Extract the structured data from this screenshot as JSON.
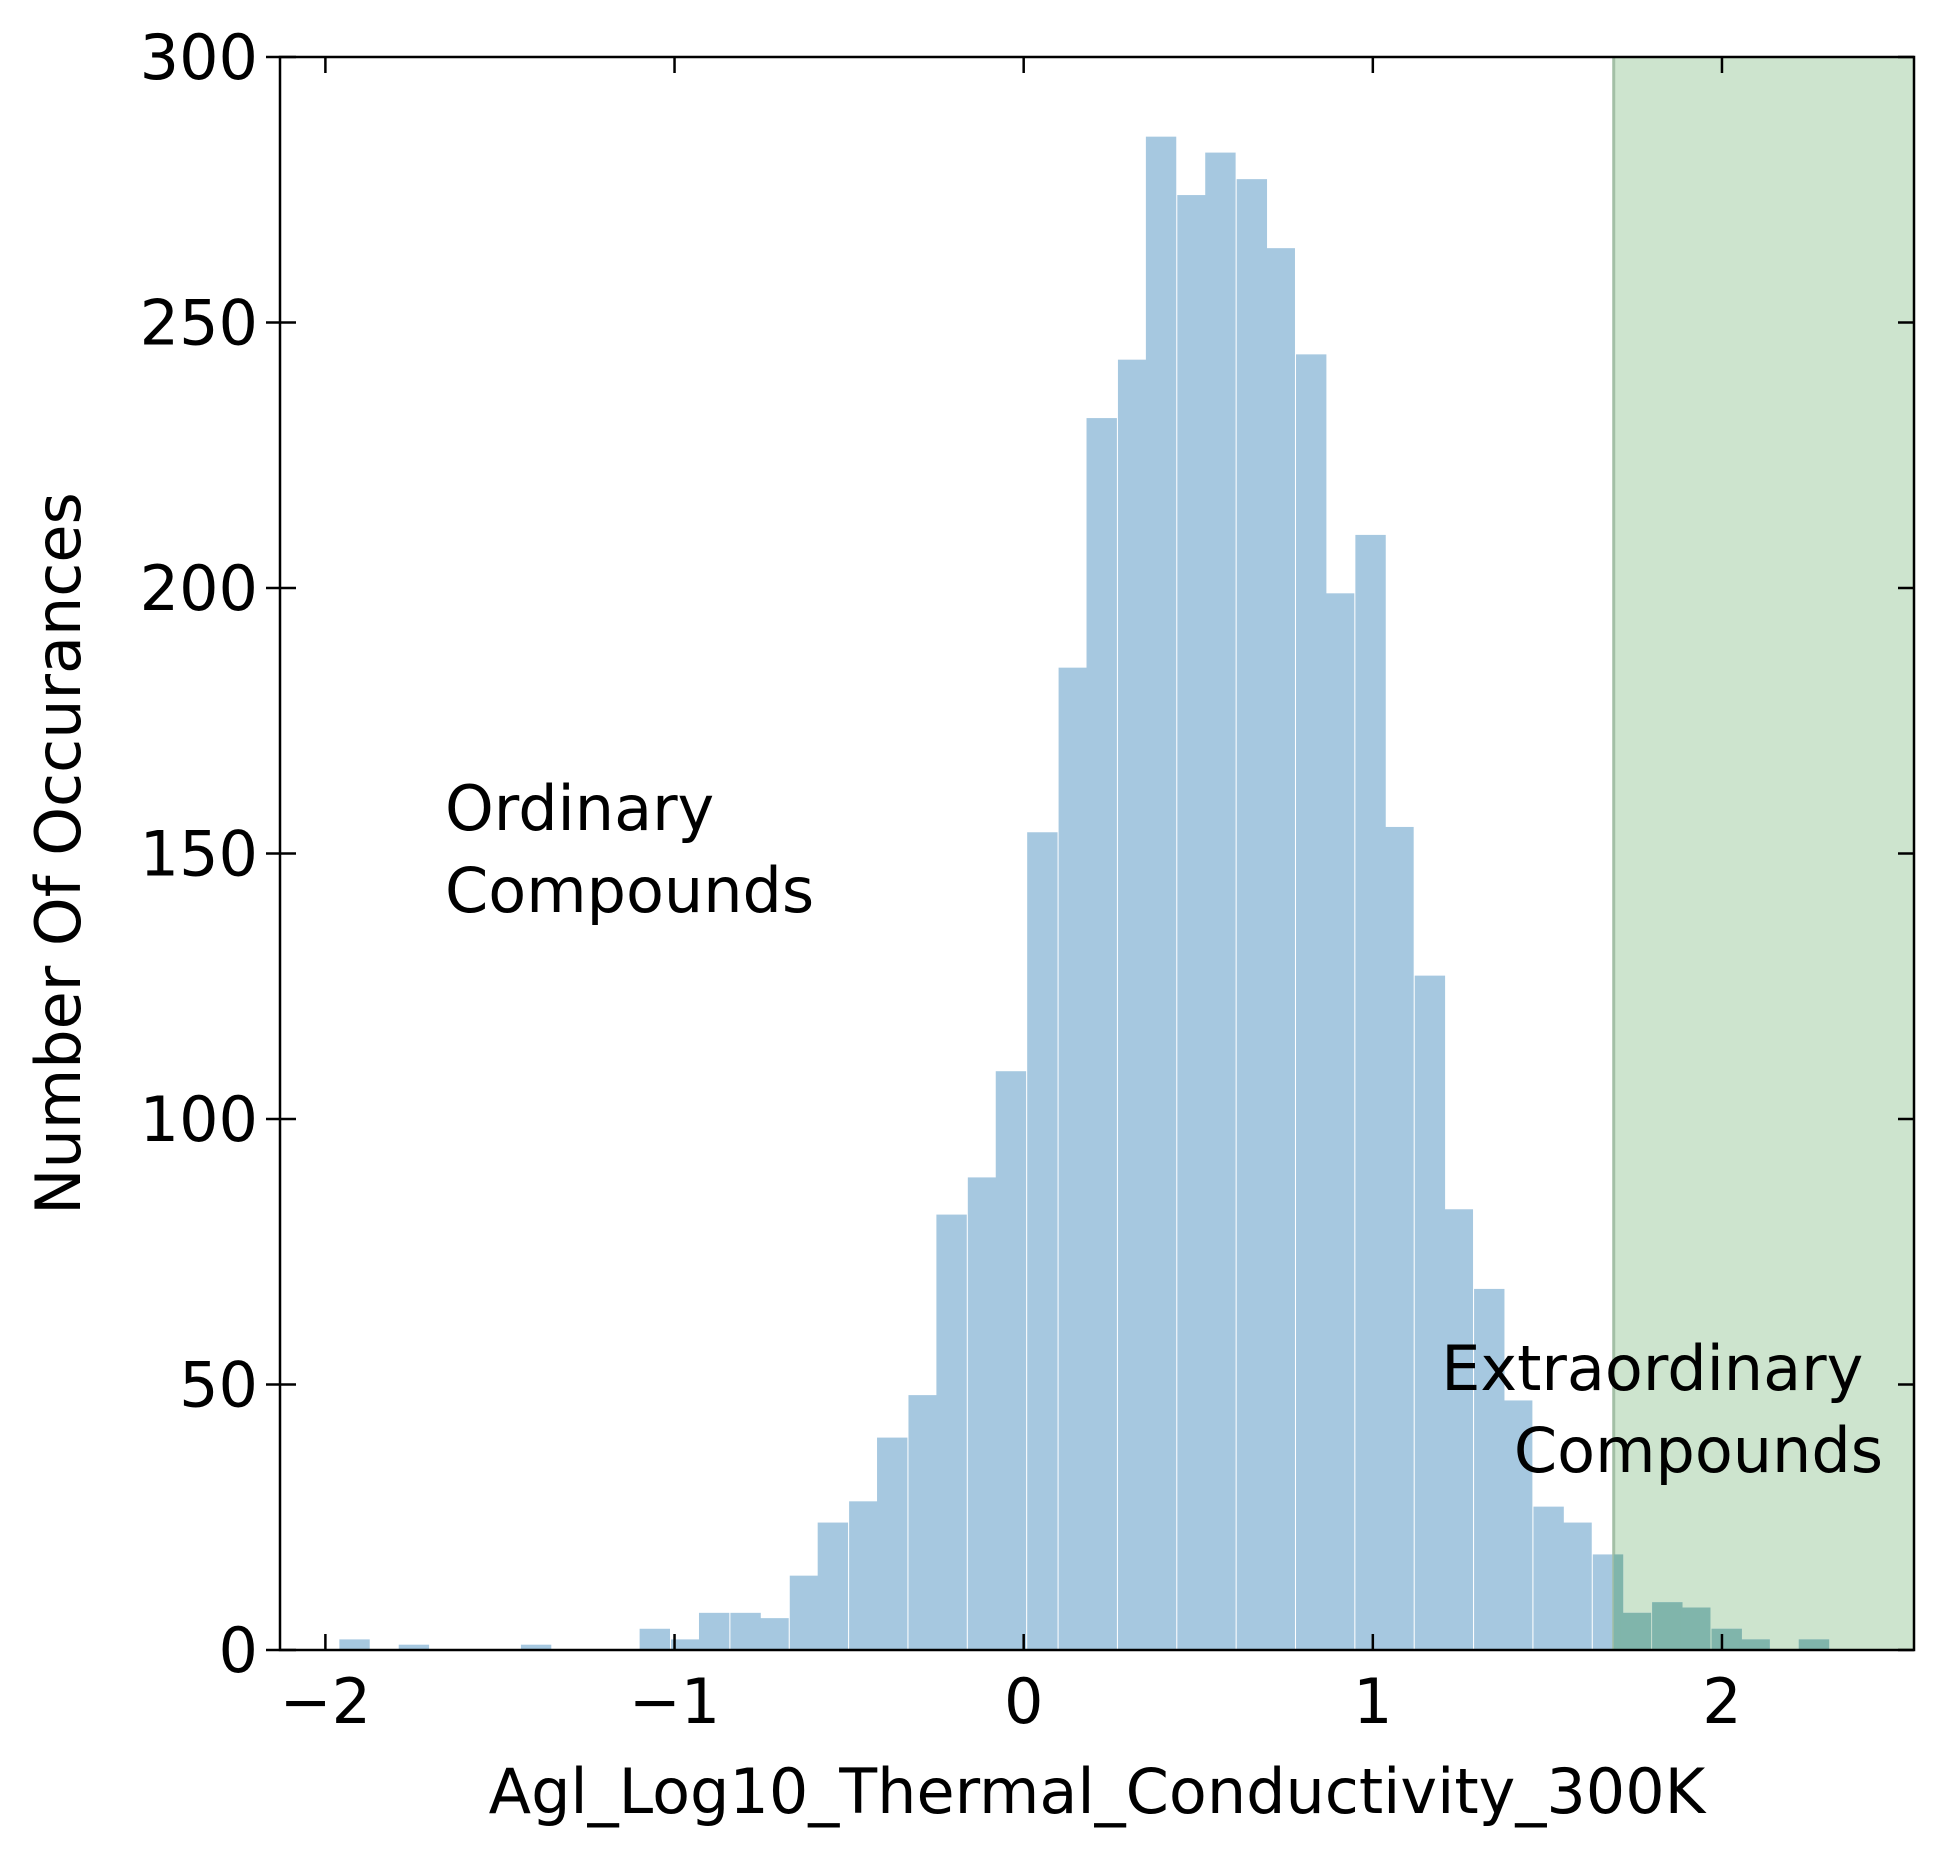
{
  "chart_data": {
    "type": "bar",
    "xlabel": "Agl_Log10_Thermal_Conductivity_300K",
    "ylabel": "Number Of Occurances",
    "xlim": [
      -2.13,
      2.55
    ],
    "ylim": [
      0,
      300
    ],
    "xticks": [
      -2,
      -1,
      0,
      1,
      2
    ],
    "xtick_labels": [
      "−2",
      "−1",
      "0",
      "1",
      "2"
    ],
    "yticks": [
      0,
      50,
      100,
      150,
      200,
      250,
      300
    ],
    "ytick_labels": [
      "0",
      "50",
      "100",
      "150",
      "200",
      "250",
      "300"
    ],
    "grid": false,
    "bin_width": 0.0853,
    "bar_color": "#a6c8e0",
    "bins": [
      {
        "x0": -1.96,
        "count": 2
      },
      {
        "x0": -1.79,
        "count": 1
      },
      {
        "x0": -1.44,
        "count": 1
      },
      {
        "x0": -1.1,
        "count": 4
      },
      {
        "x0": -1.01,
        "count": 2
      },
      {
        "x0": -0.93,
        "count": 7
      },
      {
        "x0": -0.84,
        "count": 7
      },
      {
        "x0": -0.76,
        "count": 6
      },
      {
        "x0": -0.67,
        "count": 14
      },
      {
        "x0": -0.59,
        "count": 24
      },
      {
        "x0": -0.5,
        "count": 28
      },
      {
        "x0": -0.42,
        "count": 40
      },
      {
        "x0": -0.33,
        "count": 48
      },
      {
        "x0": -0.25,
        "count": 82
      },
      {
        "x0": -0.16,
        "count": 89
      },
      {
        "x0": -0.08,
        "count": 109
      },
      {
        "x0": 0.01,
        "count": 154
      },
      {
        "x0": 0.1,
        "count": 185
      },
      {
        "x0": 0.18,
        "count": 232
      },
      {
        "x0": 0.27,
        "count": 243
      },
      {
        "x0": 0.35,
        "count": 285
      },
      {
        "x0": 0.44,
        "count": 274
      },
      {
        "x0": 0.52,
        "count": 282
      },
      {
        "x0": 0.61,
        "count": 277
      },
      {
        "x0": 0.69,
        "count": 264
      },
      {
        "x0": 0.78,
        "count": 244
      },
      {
        "x0": 0.86,
        "count": 199
      },
      {
        "x0": 0.95,
        "count": 210
      },
      {
        "x0": 1.03,
        "count": 155
      },
      {
        "x0": 1.12,
        "count": 127
      },
      {
        "x0": 1.2,
        "count": 83
      },
      {
        "x0": 1.29,
        "count": 68
      },
      {
        "x0": 1.37,
        "count": 47
      },
      {
        "x0": 1.46,
        "count": 27
      },
      {
        "x0": 1.54,
        "count": 24
      },
      {
        "x0": 1.63,
        "count": 18
      },
      {
        "x0": 1.71,
        "count": 7
      },
      {
        "x0": 1.8,
        "count": 9
      },
      {
        "x0": 1.88,
        "count": 8
      },
      {
        "x0": 1.97,
        "count": 4
      },
      {
        "x0": 2.05,
        "count": 2
      },
      {
        "x0": 2.22,
        "count": 2
      }
    ],
    "threshold": 1.69,
    "highlight_region": [
      1.69,
      2.55
    ],
    "highlight_color": "#cde4ce",
    "threshold_line_color": "#a3bfa6",
    "annotations": {
      "ordinary": [
        "Ordinary",
        "Compounds"
      ],
      "extraordinary": [
        "Extraordinary",
        "Compounds"
      ]
    }
  }
}
